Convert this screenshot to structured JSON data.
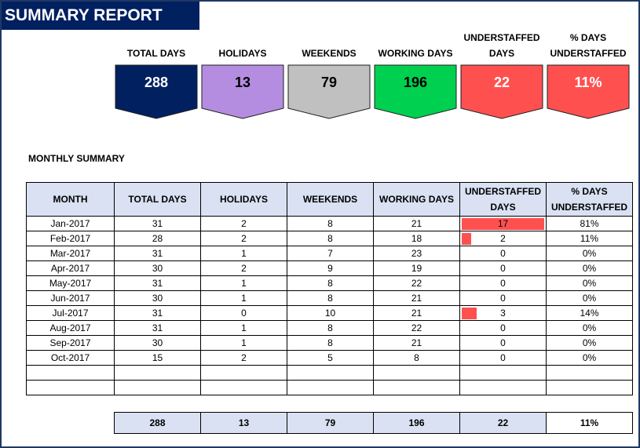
{
  "report": {
    "title": "SUMMARY REPORT"
  },
  "kpis": [
    {
      "label": "TOTAL DAYS",
      "value": "288",
      "color": "#002060",
      "text_color": "#ffffff"
    },
    {
      "label": "HOLIDAYS",
      "value": "13",
      "color": "#b58de0",
      "text_color": "#000000"
    },
    {
      "label": "WEEKENDS",
      "value": "79",
      "color": "#c0c0c0",
      "text_color": "#000000"
    },
    {
      "label": "WORKING DAYS",
      "value": "196",
      "color": "#00d050",
      "text_color": "#000000"
    },
    {
      "label": "UNDERSTAFFED\nDAYS",
      "value": "22",
      "color": "#ff5050",
      "text_color": "#ffffff"
    },
    {
      "label": "% DAYS\nUNDERSTAFFED",
      "value": "11%",
      "color": "#ff5050",
      "text_color": "#ffffff"
    }
  ],
  "monthly": {
    "section_title": "MONTHLY SUMMARY",
    "headers": [
      "MONTH",
      "TOTAL DAYS",
      "HOLIDAYS",
      "WEEKENDS",
      "WORKING DAYS",
      "UNDERSTAFFED\nDAYS",
      "% DAYS\nUNDERSTAFFED"
    ],
    "rows": [
      [
        "Jan-2017",
        "31",
        "2",
        "8",
        "21",
        "17",
        "81%"
      ],
      [
        "Feb-2017",
        "28",
        "2",
        "8",
        "18",
        "2",
        "11%"
      ],
      [
        "Mar-2017",
        "31",
        "1",
        "7",
        "23",
        "0",
        "0%"
      ],
      [
        "Apr-2017",
        "30",
        "2",
        "9",
        "19",
        "0",
        "0%"
      ],
      [
        "May-2017",
        "31",
        "1",
        "8",
        "22",
        "0",
        "0%"
      ],
      [
        "Jun-2017",
        "30",
        "1",
        "8",
        "21",
        "0",
        "0%"
      ],
      [
        "Jul-2017",
        "31",
        "0",
        "10",
        "21",
        "3",
        "14%"
      ],
      [
        "Aug-2017",
        "31",
        "1",
        "8",
        "22",
        "0",
        "0%"
      ],
      [
        "Sep-2017",
        "30",
        "1",
        "8",
        "21",
        "0",
        "0%"
      ],
      [
        "Oct-2017",
        "15",
        "2",
        "5",
        "8",
        "0",
        "0%"
      ],
      [
        "",
        "",
        "",
        "",
        "",
        "",
        ""
      ],
      [
        "",
        "",
        "",
        "",
        "",
        "",
        ""
      ]
    ],
    "understaffed_bar_max": 17,
    "bar_color": "#ff5050",
    "header_bg": "#d9e1f2"
  },
  "totals": [
    "288",
    "13",
    "79",
    "196",
    "22",
    "11%"
  ]
}
